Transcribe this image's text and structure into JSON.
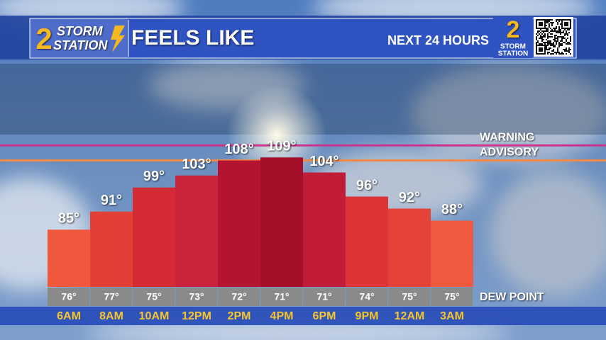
{
  "chart_data": {
    "type": "bar",
    "title": "FEELS LIKE",
    "subtitle": "NEXT 24 HOURS",
    "logo": {
      "number": "2",
      "line1": "STORM",
      "line2": "STATION"
    },
    "categories": [
      "6AM",
      "8AM",
      "10AM",
      "12PM",
      "2PM",
      "4PM",
      "6PM",
      "9PM",
      "12AM",
      "3AM"
    ],
    "values": [
      85,
      91,
      99,
      103,
      108,
      109,
      104,
      96,
      92,
      88
    ],
    "value_labels": [
      "85°",
      "91°",
      "99°",
      "103°",
      "108°",
      "109°",
      "104°",
      "96°",
      "92°",
      "88°"
    ],
    "colors": [
      "#f0583d",
      "#e33f36",
      "#d32a33",
      "#c9243a",
      "#b3142f",
      "#a50f2a",
      "#c21d38",
      "#dd3537",
      "#e5423a",
      "#ef5a3f"
    ],
    "ylim": [
      66,
      118
    ],
    "thresholds": [
      {
        "name": "WARNING",
        "value": 113,
        "color": "#c8368f"
      },
      {
        "name": "ADVISORY",
        "value": 108,
        "color": "#f08a4b"
      }
    ],
    "dew_point": {
      "name": "DEW POINT",
      "values": [
        76,
        77,
        75,
        73,
        72,
        71,
        71,
        74,
        75,
        75
      ],
      "value_labels": [
        "76°",
        "77°",
        "75°",
        "73°",
        "72°",
        "71°",
        "71°",
        "74°",
        "75°",
        "75°"
      ]
    }
  }
}
